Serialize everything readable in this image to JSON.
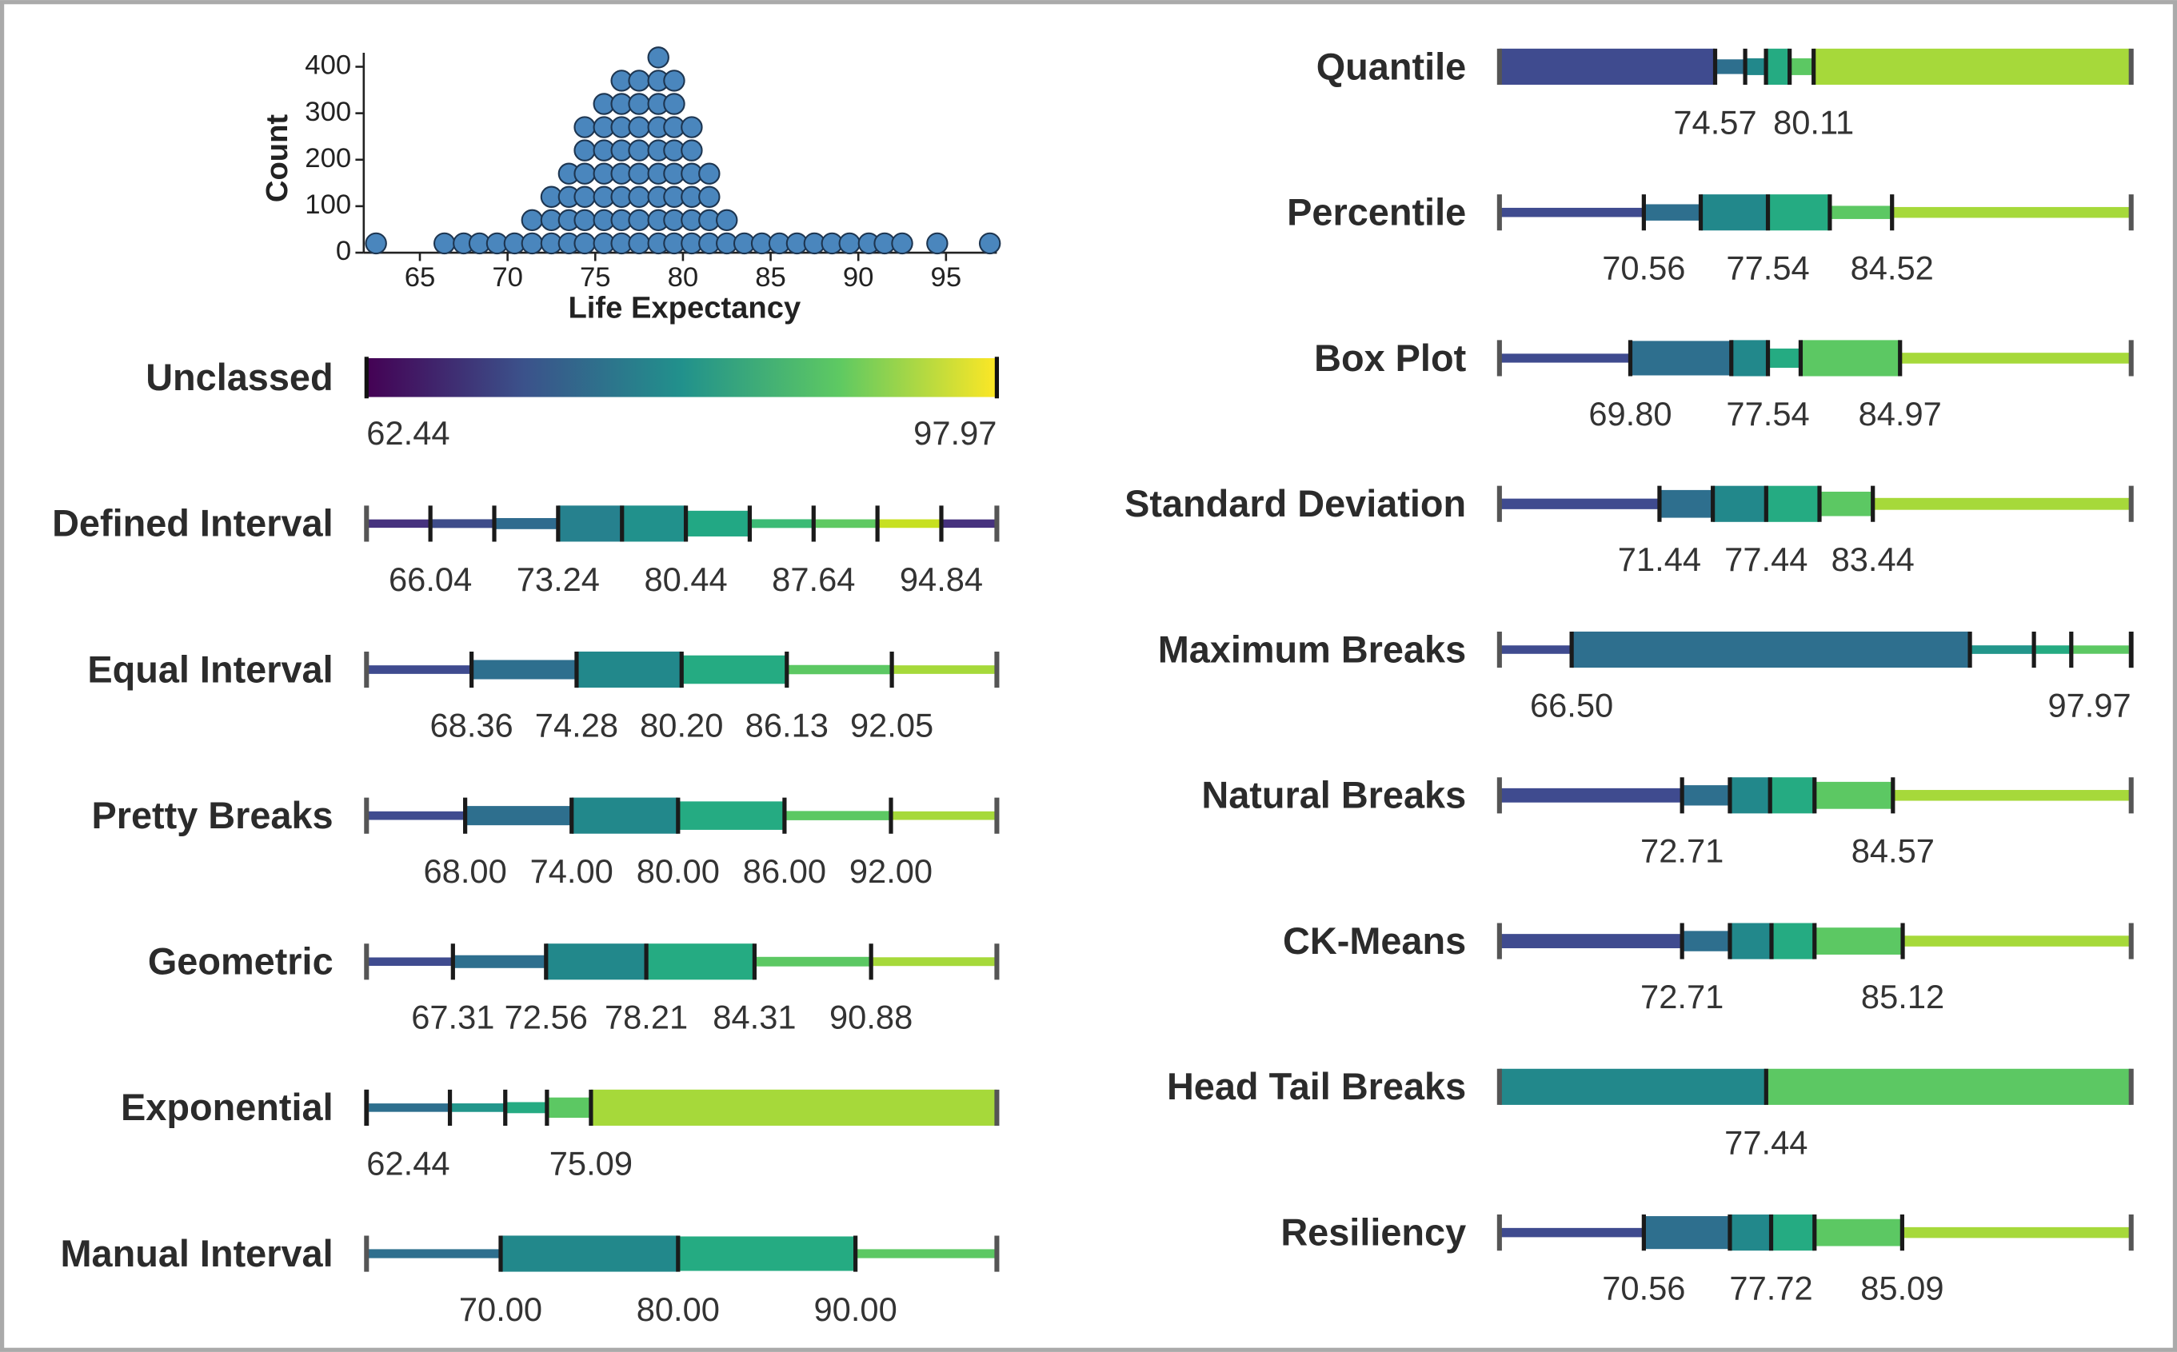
{
  "chart_data": [
    {
      "type": "dotplot",
      "xlabel": "Life Expectancy",
      "ylabel": "Count",
      "color": "#4a86bd",
      "x": [
        62.5,
        66.4,
        67.5,
        68.4,
        69.4,
        70.4,
        71.4,
        72.5,
        73.5,
        74.4,
        75.5,
        76.5,
        77.5,
        78.6,
        79.5,
        80.5,
        81.5,
        82.5,
        83.5,
        84.5,
        85.5,
        86.5,
        87.5,
        88.5,
        89.5,
        90.6,
        91.5,
        92.5,
        94.5,
        97.5
      ],
      "values": [
        20,
        20,
        20,
        20,
        20,
        20,
        70,
        120,
        170,
        270,
        320,
        370,
        370,
        420,
        370,
        270,
        170,
        70,
        20,
        20,
        20,
        20,
        20,
        20,
        20,
        20,
        20,
        20,
        20,
        20
      ],
      "xlim": [
        61.8,
        97.9
      ],
      "xticks": [
        65,
        70,
        75,
        80,
        85,
        90,
        95
      ],
      "ylim": [
        0,
        430
      ],
      "yticks": [
        0,
        100,
        200,
        300,
        400
      ]
    },
    {
      "type": "gradient",
      "title": "Unclassed",
      "xlim": [
        62.44,
        97.97
      ],
      "colors": [
        "#440154",
        "#3b528b",
        "#21918c",
        "#5ec962",
        "#fde725"
      ]
    },
    {
      "type": "classbar",
      "title": "Defined Interval",
      "xlim": [
        62.44,
        97.97
      ],
      "breaks": [
        66.04,
        69.64,
        73.24,
        76.84,
        80.44,
        84.04,
        87.64,
        91.24,
        94.84
      ],
      "value_labels": [
        "66.04",
        null,
        "73.24",
        null,
        "80.44",
        null,
        "87.64",
        null,
        "94.84"
      ],
      "colors": [
        "#46327e",
        "#3e4c8a",
        "#2f6b8e",
        "#26818e",
        "#21918c",
        "#22a884",
        "#3bbb75",
        "#5ec962",
        "#c7e020",
        "#46327e"
      ]
    },
    {
      "type": "classbar",
      "title": "Equal Interval",
      "xlim": [
        62.44,
        97.97
      ],
      "breaks": [
        68.36,
        74.28,
        80.2,
        86.13,
        92.05
      ],
      "value_labels": [
        "68.36",
        "74.28",
        "80.20",
        "86.13",
        "92.05"
      ],
      "colors": [
        "#3f4b8f",
        "#2e6f8e",
        "#22888b",
        "#25ab82",
        "#5cc863",
        "#a6d93a"
      ]
    },
    {
      "type": "classbar",
      "title": "Pretty Breaks",
      "xlim": [
        62.44,
        97.97
      ],
      "breaks": [
        68,
        74,
        80,
        86,
        92
      ],
      "value_labels": [
        "68.00",
        "74.00",
        "80.00",
        "86.00",
        "92.00"
      ],
      "colors": [
        "#3f4b8f",
        "#2e6f8e",
        "#22888b",
        "#25ab82",
        "#5cc863",
        "#a6d93a"
      ]
    },
    {
      "type": "classbar",
      "title": "Geometric",
      "xlim": [
        62.44,
        97.97
      ],
      "breaks": [
        67.31,
        72.56,
        78.21,
        84.31,
        90.88
      ],
      "value_labels": [
        "67.31",
        "72.56",
        "78.21",
        "84.31",
        "90.88"
      ],
      "colors": [
        "#3f4b8f",
        "#2e6f8e",
        "#22888b",
        "#25ab82",
        "#5cc863",
        "#a6d93a"
      ]
    },
    {
      "type": "classbar",
      "title": "Exponential",
      "xlim": [
        62.44,
        97.97
      ],
      "breaks": [
        62.44,
        67.14,
        70.26,
        72.61,
        75.09
      ],
      "value_labels": [
        "62.44",
        null,
        null,
        null,
        "75.09"
      ],
      "colors": [
        "#2e6f8e",
        "#22968b",
        "#25ab82",
        "#5cc863",
        "#a6d93a"
      ]
    },
    {
      "type": "classbar",
      "title": "Manual Interval",
      "xlim": [
        62.44,
        97.97
      ],
      "breaks": [
        70,
        80,
        90
      ],
      "value_labels": [
        "70.00",
        "80.00",
        "90.00"
      ],
      "colors": [
        "#2e6f8e",
        "#22888b",
        "#25ab82",
        "#5cc863"
      ]
    },
    {
      "type": "classbar",
      "title": "Quantile",
      "xlim": [
        62.44,
        97.97
      ],
      "breaks": [
        74.57,
        76.26,
        77.43,
        78.76,
        80.11
      ],
      "value_labels": [
        "74.57",
        null,
        null,
        null,
        "80.11"
      ],
      "colors": [
        "#3f4b8f",
        "#2e6f8e",
        "#22888b",
        "#25ab82",
        "#5cc863",
        "#a6d93a"
      ]
    },
    {
      "type": "classbar",
      "title": "Percentile",
      "xlim": [
        62.44,
        97.97
      ],
      "breaks": [
        70.56,
        73.76,
        77.54,
        81.02,
        84.52
      ],
      "value_labels": [
        "70.56",
        null,
        "77.54",
        null,
        "84.52"
      ],
      "colors": [
        "#3f4b8f",
        "#2e6f8e",
        "#22888b",
        "#25ab82",
        "#5cc863",
        "#a6d93a"
      ]
    },
    {
      "type": "classbar",
      "title": "Box Plot",
      "xlim": [
        62.44,
        97.97
      ],
      "breaks": [
        69.8,
        75.48,
        77.54,
        79.38,
        84.97
      ],
      "value_labels": [
        "69.80",
        null,
        "77.54",
        null,
        "84.97"
      ],
      "colors": [
        "#3f4b8f",
        "#2e6f8e",
        "#22888b",
        "#25ab82",
        "#5cc863",
        "#a6d93a"
      ]
    },
    {
      "type": "classbar",
      "title": "Standard Deviation",
      "xlim": [
        62.44,
        97.97
      ],
      "breaks": [
        71.44,
        74.44,
        77.44,
        80.44,
        83.44
      ],
      "value_labels": [
        "71.44",
        null,
        "77.44",
        null,
        "83.44"
      ],
      "colors": [
        "#3f4b8f",
        "#2e6f8e",
        "#22888b",
        "#25ab82",
        "#5cc863",
        "#a6d93a"
      ]
    },
    {
      "type": "classbar",
      "title": "Maximum Breaks",
      "xlim": [
        62.44,
        97.97
      ],
      "breaks": [
        66.5,
        88.9,
        92.5,
        94.6,
        97.97
      ],
      "value_labels": [
        "66.50",
        null,
        null,
        null,
        "97.97"
      ],
      "colors": [
        "#3f4b8f",
        "#2e6f8e",
        "#22968b",
        "#25ab82",
        "#5cc863"
      ]
    },
    {
      "type": "classbar",
      "title": "Natural Breaks",
      "xlim": [
        62.44,
        97.97
      ],
      "breaks": [
        72.71,
        75.4,
        77.66,
        80.16,
        84.57
      ],
      "value_labels": [
        "72.71",
        null,
        null,
        null,
        "84.57"
      ],
      "colors": [
        "#3f4b8f",
        "#2e6f8e",
        "#22888b",
        "#25ab82",
        "#5cc863",
        "#a6d93a"
      ]
    },
    {
      "type": "classbar",
      "title": "CK-Means",
      "xlim": [
        62.44,
        97.97
      ],
      "breaks": [
        72.71,
        75.4,
        77.74,
        80.16,
        85.12
      ],
      "value_labels": [
        "72.71",
        null,
        null,
        null,
        "85.12"
      ],
      "colors": [
        "#3f4b8f",
        "#2e6f8e",
        "#22888b",
        "#25ab82",
        "#5cc863",
        "#a6d93a"
      ]
    },
    {
      "type": "classbar",
      "title": "Head Tail Breaks",
      "xlim": [
        62.44,
        97.97
      ],
      "breaks": [
        77.44
      ],
      "value_labels": [
        "77.44"
      ],
      "colors": [
        "#22888b",
        "#5cc863"
      ]
    },
    {
      "type": "classbar",
      "title": "Resiliency",
      "xlim": [
        62.44,
        97.97
      ],
      "breaks": [
        70.56,
        75.4,
        77.72,
        80.16,
        85.09
      ],
      "value_labels": [
        "70.56",
        null,
        "77.72",
        null,
        "85.09"
      ],
      "colors": [
        "#3f4b8f",
        "#2e6f8e",
        "#22888b",
        "#25ab82",
        "#5cc863",
        "#a6d93a"
      ]
    }
  ]
}
